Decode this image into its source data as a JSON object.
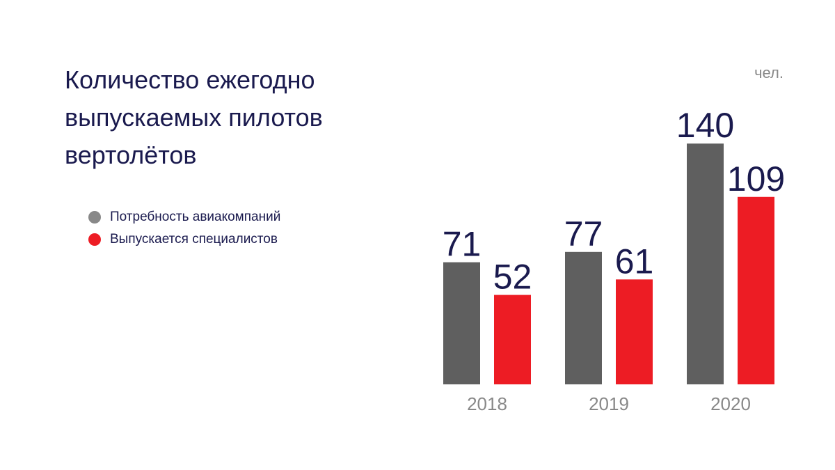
{
  "title_lines": [
    "Количество ежегодно",
    "выпускаемых пилотов",
    "вертолётов"
  ],
  "unit": "чел.",
  "legend": [
    {
      "label": "Потребность авиакомпаний",
      "color": "#888888"
    },
    {
      "label": "Выпускается специалистов",
      "color": "#ed1c24"
    }
  ],
  "chart_data": {
    "type": "bar",
    "title": "Количество ежегодно выпускаемых пилотов вертолётов",
    "categories": [
      "2018",
      "2019",
      "2020"
    ],
    "series": [
      {
        "name": "Потребность авиакомпаний",
        "values": [
          71,
          77,
          140
        ],
        "color": "#5f5f5f"
      },
      {
        "name": "Выпускается специалистов",
        "values": [
          52,
          61,
          109
        ],
        "color": "#ed1c24"
      }
    ],
    "ylabel": "чел.",
    "grid": false,
    "legend_position": "left",
    "data_labels": true
  }
}
